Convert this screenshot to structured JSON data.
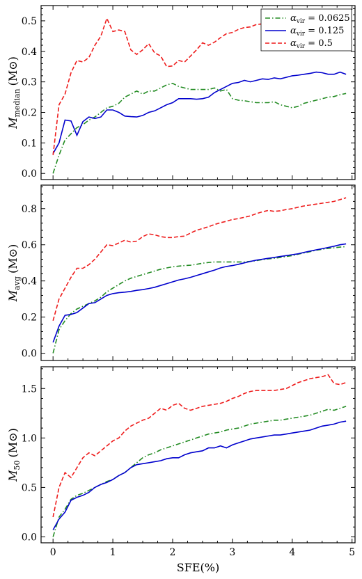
{
  "colors": {
    "alpha_0625": "#228B22",
    "alpha_0125": "#0000CD",
    "alpha_05": "#EE1C1C"
  },
  "chart_data": [
    {
      "type": "line",
      "title": "",
      "xlabel": "",
      "ylabel_main": "M",
      "ylabel_sub": "median",
      "ylabel_unit": "(M⊙)",
      "xlim": [
        -0.2,
        5.05
      ],
      "ylim": [
        -0.02,
        0.55
      ],
      "xticks": [
        0,
        1,
        2,
        3,
        4,
        5
      ],
      "xtick_labels": [
        "",
        "",
        "",
        "",
        "",
        ""
      ],
      "yticks": [
        0.0,
        0.1,
        0.2,
        0.3,
        0.4,
        0.5
      ],
      "ytick_labels": [
        "0.0",
        "0.1",
        "0.2",
        "0.3",
        "0.4",
        "0.5"
      ],
      "grid": false,
      "legend": {
        "placement": "top-right",
        "entries": [
          {
            "greek": "α",
            "sub": "vir",
            "value": " = 0.0625",
            "series": 0
          },
          {
            "greek": "α",
            "sub": "vir",
            "value": " = 0.125",
            "series": 1
          },
          {
            "greek": "α",
            "sub": "vir",
            "value": " = 0.5",
            "series": 2
          }
        ]
      },
      "series": [
        {
          "x": [
            0,
            0.1,
            0.2,
            0.3,
            0.4,
            0.5,
            0.6,
            0.7,
            0.8,
            0.9,
            1.0,
            1.1,
            1.2,
            1.3,
            1.4,
            1.5,
            1.6,
            1.7,
            1.8,
            1.9,
            2.0,
            2.1,
            2.2,
            2.3,
            2.4,
            2.5,
            2.6,
            2.7,
            2.8,
            2.9,
            3.0,
            3.1,
            3.2,
            3.3,
            3.4,
            3.5,
            3.6,
            3.7,
            3.8,
            3.9,
            4.0,
            4.1,
            4.2,
            4.3,
            4.4,
            4.5,
            4.6,
            4.7,
            4.8,
            4.9
          ],
          "y": [
            0.0,
            0.06,
            0.11,
            0.13,
            0.15,
            0.16,
            0.175,
            0.185,
            0.2,
            0.215,
            0.22,
            0.23,
            0.25,
            0.26,
            0.27,
            0.26,
            0.27,
            0.27,
            0.28,
            0.29,
            0.295,
            0.285,
            0.28,
            0.275,
            0.275,
            0.275,
            0.275,
            0.28,
            0.27,
            0.275,
            0.245,
            0.24,
            0.238,
            0.235,
            0.232,
            0.232,
            0.232,
            0.235,
            0.225,
            0.22,
            0.215,
            0.22,
            0.23,
            0.235,
            0.24,
            0.245,
            0.25,
            0.252,
            0.258,
            0.262
          ]
        },
        {
          "x": [
            0,
            0.1,
            0.2,
            0.3,
            0.4,
            0.5,
            0.6,
            0.7,
            0.8,
            0.9,
            1.0,
            1.1,
            1.2,
            1.3,
            1.4,
            1.5,
            1.6,
            1.7,
            1.8,
            1.9,
            2.0,
            2.1,
            2.2,
            2.3,
            2.4,
            2.5,
            2.6,
            2.7,
            2.8,
            2.9,
            3.0,
            3.1,
            3.2,
            3.3,
            3.4,
            3.5,
            3.6,
            3.7,
            3.8,
            3.9,
            4.0,
            4.1,
            4.2,
            4.3,
            4.4,
            4.5,
            4.6,
            4.7,
            4.8,
            4.9
          ],
          "y": [
            0.065,
            0.1,
            0.175,
            0.172,
            0.125,
            0.17,
            0.185,
            0.18,
            0.185,
            0.208,
            0.208,
            0.2,
            0.188,
            0.186,
            0.185,
            0.19,
            0.2,
            0.205,
            0.215,
            0.225,
            0.232,
            0.245,
            0.245,
            0.245,
            0.243,
            0.245,
            0.25,
            0.265,
            0.275,
            0.285,
            0.295,
            0.298,
            0.305,
            0.3,
            0.305,
            0.31,
            0.308,
            0.313,
            0.31,
            0.315,
            0.32,
            0.322,
            0.325,
            0.328,
            0.332,
            0.33,
            0.325,
            0.325,
            0.332,
            0.325
          ]
        },
        {
          "x": [
            0,
            0.1,
            0.2,
            0.3,
            0.4,
            0.5,
            0.6,
            0.7,
            0.8,
            0.9,
            1.0,
            1.1,
            1.2,
            1.3,
            1.4,
            1.5,
            1.6,
            1.7,
            1.8,
            1.9,
            2.0,
            2.1,
            2.2,
            2.3,
            2.4,
            2.5,
            2.6,
            2.7,
            2.8,
            2.9,
            3.0,
            3.1,
            3.2,
            3.3,
            3.4,
            3.5,
            3.6,
            3.7,
            3.8,
            3.9,
            4.0,
            4.1,
            4.2,
            4.3,
            4.4,
            4.5,
            4.6,
            4.7,
            4.8,
            4.9
          ],
          "y": [
            0.06,
            0.225,
            0.26,
            0.33,
            0.37,
            0.365,
            0.38,
            0.42,
            0.45,
            0.508,
            0.465,
            0.47,
            0.465,
            0.405,
            0.39,
            0.405,
            0.425,
            0.395,
            0.385,
            0.35,
            0.352,
            0.37,
            0.365,
            0.385,
            0.405,
            0.428,
            0.42,
            0.43,
            0.445,
            0.458,
            0.462,
            0.472,
            0.478,
            0.48,
            0.488,
            0.49,
            0.495,
            0.5,
            0.505,
            0.508,
            0.5,
            0.51,
            0.515,
            0.52,
            0.52,
            0.515,
            0.52,
            0.522,
            0.525,
            0.53
          ]
        }
      ]
    },
    {
      "type": "line",
      "title": "",
      "xlabel": "",
      "ylabel_main": "M",
      "ylabel_sub": "avg",
      "ylabel_unit": "(M⊙)",
      "xlim": [
        -0.2,
        5.05
      ],
      "ylim": [
        -0.04,
        0.93
      ],
      "xticks": [
        0,
        1,
        2,
        3,
        4,
        5
      ],
      "xtick_labels": [
        "",
        "",
        "",
        "",
        "",
        ""
      ],
      "yticks": [
        0.0,
        0.2,
        0.4,
        0.6,
        0.8
      ],
      "ytick_labels": [
        "0.0",
        "0.2",
        "0.4",
        "0.6",
        "0.8"
      ],
      "grid": false,
      "series": [
        {
          "x": [
            0,
            0.1,
            0.2,
            0.3,
            0.4,
            0.5,
            0.6,
            0.7,
            0.8,
            0.9,
            1.0,
            1.1,
            1.2,
            1.3,
            1.4,
            1.5,
            1.6,
            1.7,
            1.8,
            1.9,
            2.0,
            2.1,
            2.2,
            2.3,
            2.4,
            2.5,
            2.6,
            2.7,
            2.8,
            2.9,
            3.0,
            3.1,
            3.2,
            3.3,
            3.4,
            3.5,
            3.6,
            3.7,
            3.8,
            3.9,
            4.0,
            4.1,
            4.2,
            4.3,
            4.4,
            4.5,
            4.6,
            4.7,
            4.8,
            4.9
          ],
          "y": [
            0.0,
            0.13,
            0.18,
            0.22,
            0.245,
            0.26,
            0.275,
            0.29,
            0.31,
            0.34,
            0.36,
            0.38,
            0.4,
            0.415,
            0.425,
            0.435,
            0.445,
            0.455,
            0.465,
            0.472,
            0.478,
            0.482,
            0.485,
            0.487,
            0.492,
            0.498,
            0.502,
            0.505,
            0.505,
            0.505,
            0.505,
            0.505,
            0.505,
            0.508,
            0.512,
            0.518,
            0.522,
            0.525,
            0.53,
            0.535,
            0.54,
            0.548,
            0.555,
            0.562,
            0.57,
            0.575,
            0.58,
            0.583,
            0.587,
            0.59
          ]
        },
        {
          "x": [
            0,
            0.1,
            0.2,
            0.3,
            0.4,
            0.5,
            0.6,
            0.7,
            0.8,
            0.9,
            1.0,
            1.1,
            1.2,
            1.3,
            1.4,
            1.5,
            1.6,
            1.7,
            1.8,
            1.9,
            2.0,
            2.1,
            2.2,
            2.3,
            2.4,
            2.5,
            2.6,
            2.7,
            2.8,
            2.9,
            3.0,
            3.1,
            3.2,
            3.3,
            3.4,
            3.5,
            3.6,
            3.7,
            3.8,
            3.9,
            4.0,
            4.1,
            4.2,
            4.3,
            4.4,
            4.5,
            4.6,
            4.7,
            4.8,
            4.9
          ],
          "y": [
            0.06,
            0.15,
            0.21,
            0.215,
            0.225,
            0.25,
            0.275,
            0.28,
            0.3,
            0.32,
            0.33,
            0.335,
            0.338,
            0.342,
            0.348,
            0.352,
            0.358,
            0.365,
            0.375,
            0.385,
            0.395,
            0.405,
            0.412,
            0.42,
            0.43,
            0.44,
            0.45,
            0.46,
            0.472,
            0.48,
            0.485,
            0.492,
            0.5,
            0.508,
            0.515,
            0.52,
            0.525,
            0.53,
            0.535,
            0.54,
            0.545,
            0.55,
            0.558,
            0.565,
            0.572,
            0.578,
            0.585,
            0.592,
            0.6,
            0.605
          ]
        },
        {
          "x": [
            0,
            0.1,
            0.2,
            0.3,
            0.4,
            0.5,
            0.6,
            0.7,
            0.8,
            0.9,
            1.0,
            1.1,
            1.2,
            1.3,
            1.4,
            1.5,
            1.6,
            1.7,
            1.8,
            1.9,
            2.0,
            2.1,
            2.2,
            2.3,
            2.4,
            2.5,
            2.6,
            2.7,
            2.8,
            2.9,
            3.0,
            3.1,
            3.2,
            3.3,
            3.4,
            3.5,
            3.6,
            3.7,
            3.8,
            3.9,
            4.0,
            4.1,
            4.2,
            4.3,
            4.4,
            4.5,
            4.6,
            4.7,
            4.8,
            4.9
          ],
          "y": [
            0.18,
            0.3,
            0.36,
            0.42,
            0.47,
            0.47,
            0.49,
            0.52,
            0.56,
            0.6,
            0.595,
            0.61,
            0.625,
            0.615,
            0.62,
            0.645,
            0.66,
            0.655,
            0.645,
            0.64,
            0.64,
            0.645,
            0.648,
            0.665,
            0.68,
            0.69,
            0.7,
            0.712,
            0.722,
            0.73,
            0.74,
            0.745,
            0.752,
            0.76,
            0.772,
            0.782,
            0.79,
            0.785,
            0.788,
            0.795,
            0.8,
            0.808,
            0.815,
            0.82,
            0.825,
            0.83,
            0.835,
            0.84,
            0.85,
            0.86
          ]
        }
      ]
    },
    {
      "type": "line",
      "title": "",
      "xlabel": "SFE(%)",
      "ylabel_main": "M",
      "ylabel_sub": "50",
      "ylabel_unit": "(M⊙)",
      "xlim": [
        -0.2,
        5.05
      ],
      "ylim": [
        -0.06,
        1.72
      ],
      "xticks": [
        0,
        1,
        2,
        3,
        4,
        5
      ],
      "xtick_labels": [
        "0",
        "1",
        "2",
        "3",
        "4",
        "5"
      ],
      "yticks": [
        0.0,
        0.5,
        1.0,
        1.5
      ],
      "ytick_labels": [
        "0.0",
        "0.5",
        "1.0",
        "1.5"
      ],
      "grid": false,
      "series": [
        {
          "x": [
            0,
            0.1,
            0.2,
            0.3,
            0.4,
            0.5,
            0.6,
            0.7,
            0.8,
            0.9,
            1.0,
            1.1,
            1.2,
            1.3,
            1.4,
            1.5,
            1.6,
            1.7,
            1.8,
            1.9,
            2.0,
            2.1,
            2.2,
            2.3,
            2.4,
            2.5,
            2.6,
            2.7,
            2.8,
            2.9,
            3.0,
            3.1,
            3.2,
            3.3,
            3.4,
            3.5,
            3.6,
            3.7,
            3.8,
            3.9,
            4.0,
            4.1,
            4.2,
            4.3,
            4.4,
            4.5,
            4.6,
            4.7,
            4.8,
            4.9
          ],
          "y": [
            0.0,
            0.2,
            0.28,
            0.38,
            0.42,
            0.44,
            0.47,
            0.5,
            0.53,
            0.56,
            0.58,
            0.62,
            0.65,
            0.7,
            0.75,
            0.8,
            0.83,
            0.85,
            0.88,
            0.9,
            0.92,
            0.94,
            0.96,
            0.98,
            1.0,
            1.02,
            1.04,
            1.05,
            1.06,
            1.08,
            1.09,
            1.1,
            1.12,
            1.14,
            1.15,
            1.16,
            1.17,
            1.18,
            1.18,
            1.19,
            1.2,
            1.21,
            1.22,
            1.23,
            1.25,
            1.27,
            1.29,
            1.28,
            1.3,
            1.32
          ]
        },
        {
          "x": [
            0,
            0.1,
            0.2,
            0.3,
            0.4,
            0.5,
            0.6,
            0.7,
            0.8,
            0.9,
            1.0,
            1.1,
            1.2,
            1.3,
            1.4,
            1.5,
            1.6,
            1.7,
            1.8,
            1.9,
            2.0,
            2.1,
            2.2,
            2.3,
            2.4,
            2.5,
            2.6,
            2.7,
            2.8,
            2.9,
            3.0,
            3.1,
            3.2,
            3.3,
            3.4,
            3.5,
            3.6,
            3.7,
            3.8,
            3.9,
            4.0,
            4.1,
            4.2,
            4.3,
            4.4,
            4.5,
            4.6,
            4.7,
            4.8,
            4.9
          ],
          "y": [
            0.07,
            0.18,
            0.25,
            0.37,
            0.4,
            0.42,
            0.45,
            0.5,
            0.53,
            0.55,
            0.58,
            0.62,
            0.65,
            0.7,
            0.73,
            0.74,
            0.75,
            0.76,
            0.77,
            0.79,
            0.8,
            0.8,
            0.83,
            0.85,
            0.86,
            0.87,
            0.9,
            0.9,
            0.92,
            0.9,
            0.93,
            0.95,
            0.97,
            0.99,
            1.0,
            1.01,
            1.02,
            1.03,
            1.03,
            1.04,
            1.05,
            1.06,
            1.07,
            1.08,
            1.1,
            1.12,
            1.13,
            1.14,
            1.16,
            1.17
          ]
        },
        {
          "x": [
            0,
            0.1,
            0.2,
            0.3,
            0.4,
            0.5,
            0.6,
            0.7,
            0.8,
            0.9,
            1.0,
            1.1,
            1.2,
            1.3,
            1.4,
            1.5,
            1.6,
            1.7,
            1.8,
            1.9,
            2.0,
            2.1,
            2.2,
            2.3,
            2.4,
            2.5,
            2.6,
            2.7,
            2.8,
            2.9,
            3.0,
            3.1,
            3.2,
            3.3,
            3.4,
            3.5,
            3.6,
            3.7,
            3.8,
            3.9,
            4.0,
            4.1,
            4.2,
            4.3,
            4.4,
            4.5,
            4.6,
            4.7,
            4.8,
            4.9
          ],
          "y": [
            0.2,
            0.5,
            0.65,
            0.6,
            0.7,
            0.8,
            0.85,
            0.82,
            0.87,
            0.92,
            0.97,
            1.0,
            1.07,
            1.12,
            1.15,
            1.18,
            1.2,
            1.25,
            1.3,
            1.28,
            1.33,
            1.35,
            1.3,
            1.28,
            1.3,
            1.32,
            1.33,
            1.34,
            1.35,
            1.37,
            1.4,
            1.42,
            1.45,
            1.47,
            1.48,
            1.48,
            1.48,
            1.48,
            1.49,
            1.5,
            1.53,
            1.56,
            1.58,
            1.6,
            1.61,
            1.62,
            1.64,
            1.55,
            1.54,
            1.56
          ]
        }
      ]
    }
  ]
}
